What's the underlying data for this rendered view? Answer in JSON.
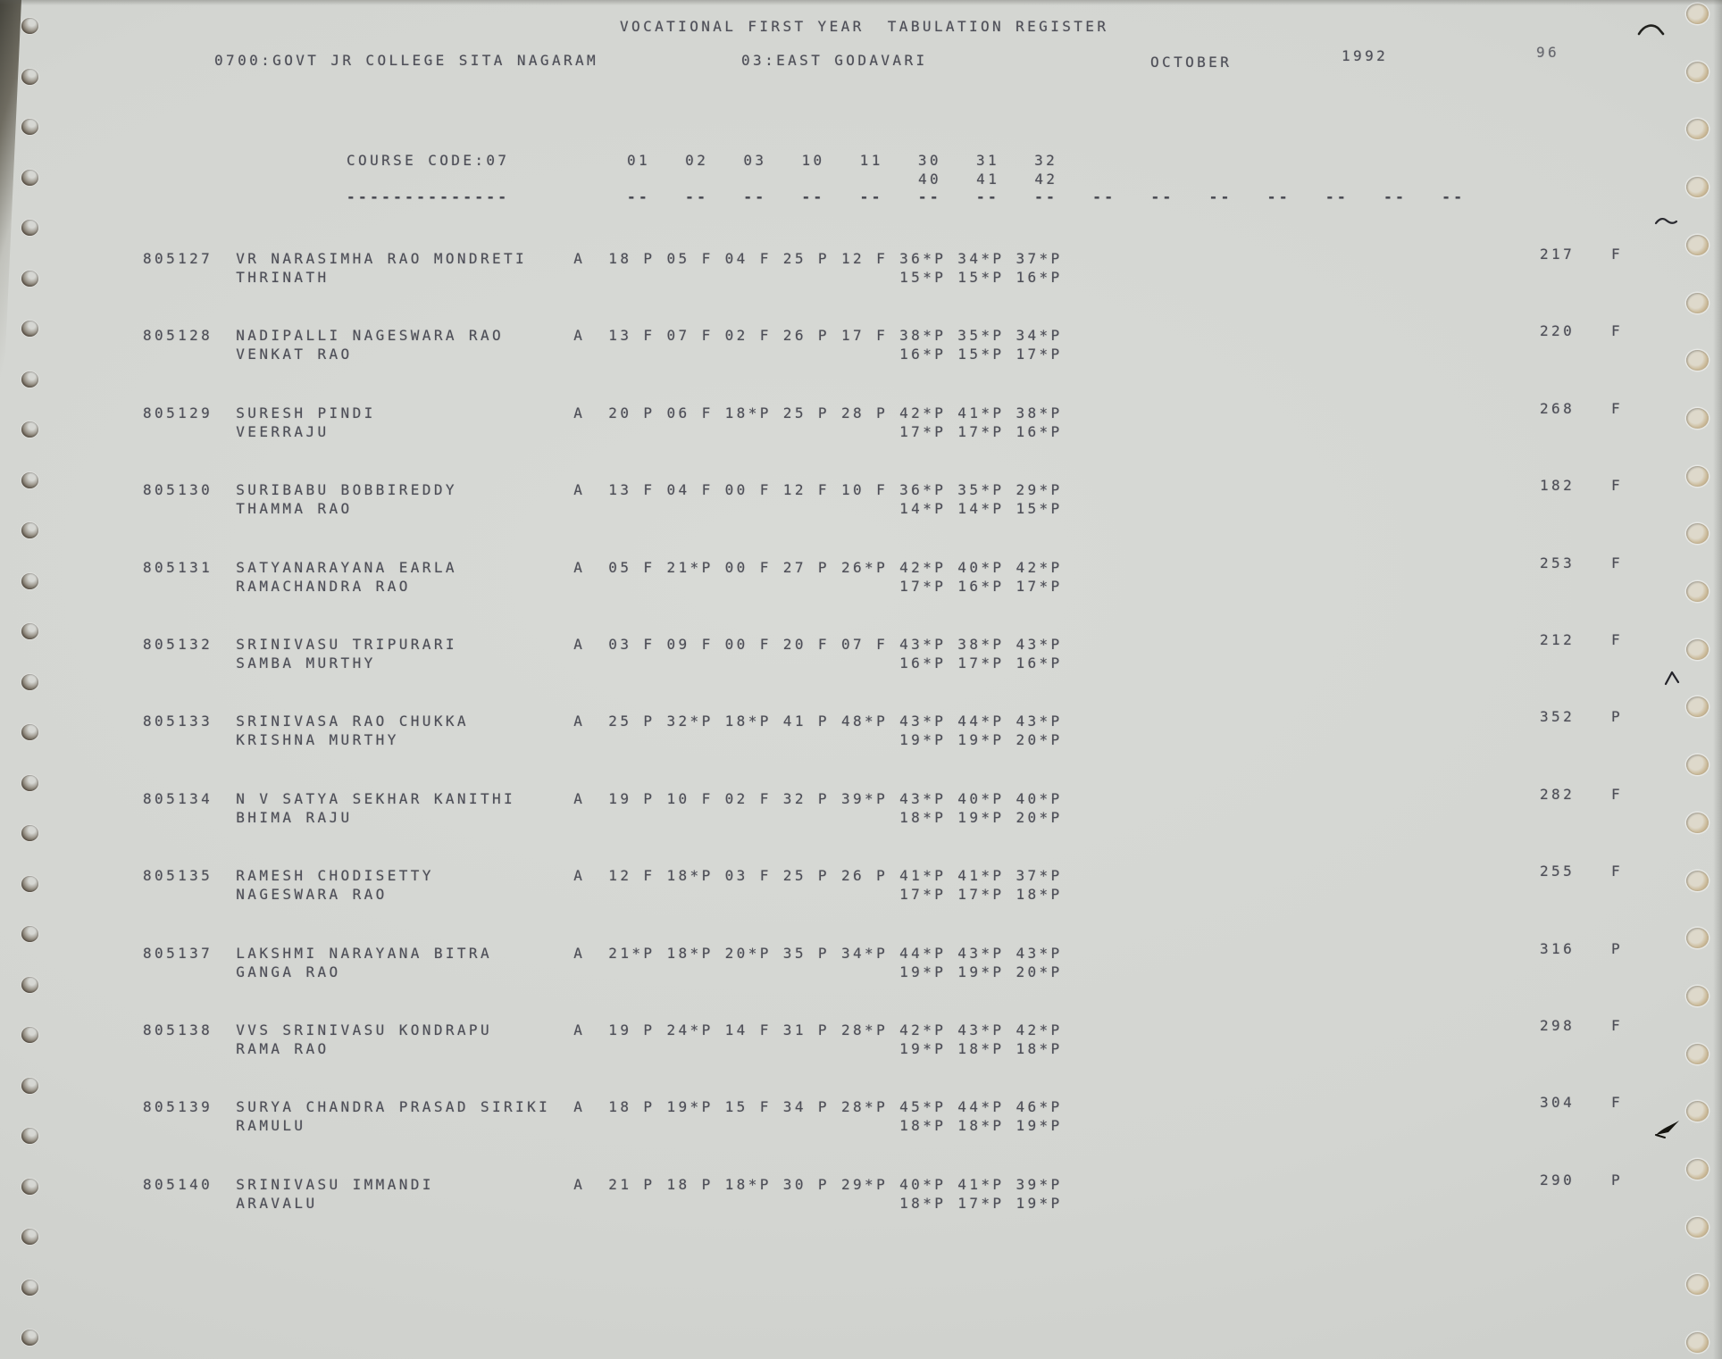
{
  "page": {
    "title": "VOCATIONAL FIRST YEAR  TABULATION REGISTER",
    "college": "0700:GOVT JR COLLEGE SITA NAGARAM",
    "district": "03:EAST GODAVARI",
    "month": "OCTOBER",
    "year": "1992",
    "page_number": "96",
    "course_code_label": "COURSE CODE:07",
    "course_code_underline": "--------------",
    "subject_codes_row1": [
      "01",
      "02",
      "03",
      "10",
      "11",
      "30",
      "31",
      "32"
    ],
    "subject_codes_row2": [
      "40",
      "41",
      "42"
    ],
    "column_dash": "--",
    "column_dash_count": 15
  },
  "students": [
    {
      "roll": "805127",
      "name": "VR NARASIMHA RAO MONDRETI",
      "father_name": "THRINATH",
      "attendance": "A",
      "marks_row1": [
        "18 P",
        "05 F",
        "04 F",
        "25 P",
        "12 F",
        "36*P",
        "34*P",
        "37*P"
      ],
      "marks_row2": [
        "15*P",
        "15*P",
        "16*P"
      ],
      "total": "217",
      "result": "F"
    },
    {
      "roll": "805128",
      "name": "NADIPALLI NAGESWARA RAO",
      "father_name": "VENKAT RAO",
      "attendance": "A",
      "marks_row1": [
        "13 F",
        "07 F",
        "02 F",
        "26 P",
        "17 F",
        "38*P",
        "35*P",
        "34*P"
      ],
      "marks_row2": [
        "16*P",
        "15*P",
        "17*P"
      ],
      "total": "220",
      "result": "F"
    },
    {
      "roll": "805129",
      "name": "SURESH PINDI",
      "father_name": "VEERRAJU",
      "attendance": "A",
      "marks_row1": [
        "20 P",
        "06 F",
        "18*P",
        "25 P",
        "28 P",
        "42*P",
        "41*P",
        "38*P"
      ],
      "marks_row2": [
        "17*P",
        "17*P",
        "16*P"
      ],
      "total": "268",
      "result": "F"
    },
    {
      "roll": "805130",
      "name": "SURIBABU BOBBIREDDY",
      "father_name": "THAMMA RAO",
      "attendance": "A",
      "marks_row1": [
        "13 F",
        "04 F",
        "00 F",
        "12 F",
        "10 F",
        "36*P",
        "35*P",
        "29*P"
      ],
      "marks_row2": [
        "14*P",
        "14*P",
        "15*P"
      ],
      "total": "182",
      "result": "F"
    },
    {
      "roll": "805131",
      "name": "SATYANARAYANA EARLA",
      "father_name": "RAMACHANDRA RAO",
      "attendance": "A",
      "marks_row1": [
        "05 F",
        "21*P",
        "00 F",
        "27 P",
        "26*P",
        "42*P",
        "40*P",
        "42*P"
      ],
      "marks_row2": [
        "17*P",
        "16*P",
        "17*P"
      ],
      "total": "253",
      "result": "F"
    },
    {
      "roll": "805132",
      "name": "SRINIVASU TRIPURARI",
      "father_name": "SAMBA MURTHY",
      "attendance": "A",
      "marks_row1": [
        "03 F",
        "09 F",
        "00 F",
        "20 F",
        "07 F",
        "43*P",
        "38*P",
        "43*P"
      ],
      "marks_row2": [
        "16*P",
        "17*P",
        "16*P"
      ],
      "total": "212",
      "result": "F"
    },
    {
      "roll": "805133",
      "name": "SRINIVASA RAO CHUKKA",
      "father_name": "KRISHNA MURTHY",
      "attendance": "A",
      "marks_row1": [
        "25 P",
        "32*P",
        "18*P",
        "41 P",
        "48*P",
        "43*P",
        "44*P",
        "43*P"
      ],
      "marks_row2": [
        "19*P",
        "19*P",
        "20*P"
      ],
      "total": "352",
      "result": "P"
    },
    {
      "roll": "805134",
      "name": "N V SATYA SEKHAR KANITHI",
      "father_name": "BHIMA RAJU",
      "attendance": "A",
      "marks_row1": [
        "19 P",
        "10 F",
        "02 F",
        "32 P",
        "39*P",
        "43*P",
        "40*P",
        "40*P"
      ],
      "marks_row2": [
        "18*P",
        "19*P",
        "20*P"
      ],
      "total": "282",
      "result": "F"
    },
    {
      "roll": "805135",
      "name": "RAMESH CHODISETTY",
      "father_name": "NAGESWARA RAO",
      "attendance": "A",
      "marks_row1": [
        "12 F",
        "18*P",
        "03 F",
        "25 P",
        "26 P",
        "41*P",
        "41*P",
        "37*P"
      ],
      "marks_row2": [
        "17*P",
        "17*P",
        "18*P"
      ],
      "total": "255",
      "result": "F"
    },
    {
      "roll": "805137",
      "name": "LAKSHMI NARAYANA BITRA",
      "father_name": "GANGA RAO",
      "attendance": "A",
      "marks_row1": [
        "21*P",
        "18*P",
        "20*P",
        "35 P",
        "34*P",
        "44*P",
        "43*P",
        "43*P"
      ],
      "marks_row2": [
        "19*P",
        "19*P",
        "20*P"
      ],
      "total": "316",
      "result": "P"
    },
    {
      "roll": "805138",
      "name": "VVS SRINIVASU KONDRAPU",
      "father_name": "RAMA RAO",
      "attendance": "A",
      "marks_row1": [
        "19 P",
        "24*P",
        "14 F",
        "31 P",
        "28*P",
        "42*P",
        "43*P",
        "42*P"
      ],
      "marks_row2": [
        "19*P",
        "18*P",
        "18*P"
      ],
      "total": "298",
      "result": "F"
    },
    {
      "roll": "805139",
      "name": "SURYA CHANDRA PRASAD SIRIKI",
      "father_name": "RAMULU",
      "attendance": "A",
      "marks_row1": [
        "18 P",
        "19*P",
        "15 F",
        "34 P",
        "28*P",
        "45*P",
        "44*P",
        "46*P"
      ],
      "marks_row2": [
        "18*P",
        "18*P",
        "19*P"
      ],
      "total": "304",
      "result": "F"
    },
    {
      "roll": "805140",
      "name": "SRINIVASU IMMANDI",
      "father_name": "ARAVALU",
      "attendance": "A",
      "marks_row1": [
        "21 P",
        "18 P",
        "18*P",
        "30 P",
        "29*P",
        "40*P",
        "41*P",
        "39*P"
      ],
      "marks_row2": [
        "18*P",
        "17*P",
        "19*P"
      ],
      "total": "290",
      "result": "P"
    }
  ]
}
